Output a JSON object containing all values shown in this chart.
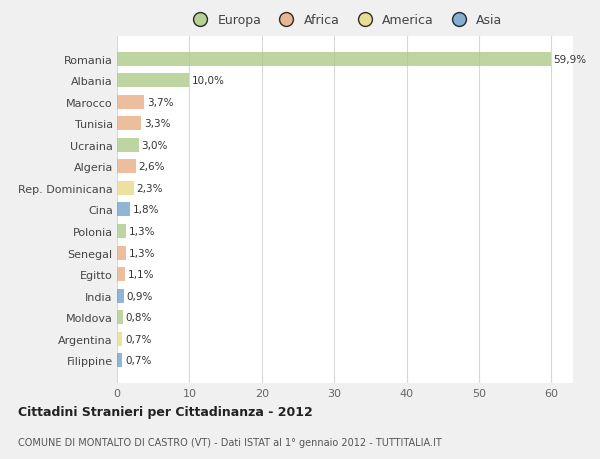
{
  "countries": [
    "Romania",
    "Albania",
    "Marocco",
    "Tunisia",
    "Ucraina",
    "Algeria",
    "Rep. Dominicana",
    "Cina",
    "Polonia",
    "Senegal",
    "Egitto",
    "India",
    "Moldova",
    "Argentina",
    "Filippine"
  ],
  "values": [
    59.9,
    10.0,
    3.7,
    3.3,
    3.0,
    2.6,
    2.3,
    1.8,
    1.3,
    1.3,
    1.1,
    0.9,
    0.8,
    0.7,
    0.7
  ],
  "labels": [
    "59,9%",
    "10,0%",
    "3,7%",
    "3,3%",
    "3,0%",
    "2,6%",
    "2,3%",
    "1,8%",
    "1,3%",
    "1,3%",
    "1,1%",
    "0,9%",
    "0,8%",
    "0,7%",
    "0,7%"
  ],
  "colors": [
    "#a8c882",
    "#a8c882",
    "#e8a87c",
    "#e8a87c",
    "#a8c882",
    "#e8a87c",
    "#e8d87c",
    "#6b9ec8",
    "#a8c882",
    "#e8a87c",
    "#e8a87c",
    "#6b9ec8",
    "#a8c882",
    "#e8d87c",
    "#6b9ec8"
  ],
  "legend_labels": [
    "Europa",
    "Africa",
    "America",
    "Asia"
  ],
  "legend_colors": [
    "#a8c882",
    "#e8a87c",
    "#e8d87c",
    "#6b9ec8"
  ],
  "title1": "Cittadini Stranieri per Cittadinanza - 2012",
  "title2": "COMUNE DI MONTALTO DI CASTRO (VT) - Dati ISTAT al 1° gennaio 2012 - TUTTITALIA.IT",
  "xlim": [
    0,
    63
  ],
  "xticks": [
    0,
    10,
    20,
    30,
    40,
    50,
    60
  ],
  "background_color": "#f0f0f0",
  "plot_bg": "#ffffff",
  "bar_alpha": 0.75,
  "bar_height": 0.65
}
